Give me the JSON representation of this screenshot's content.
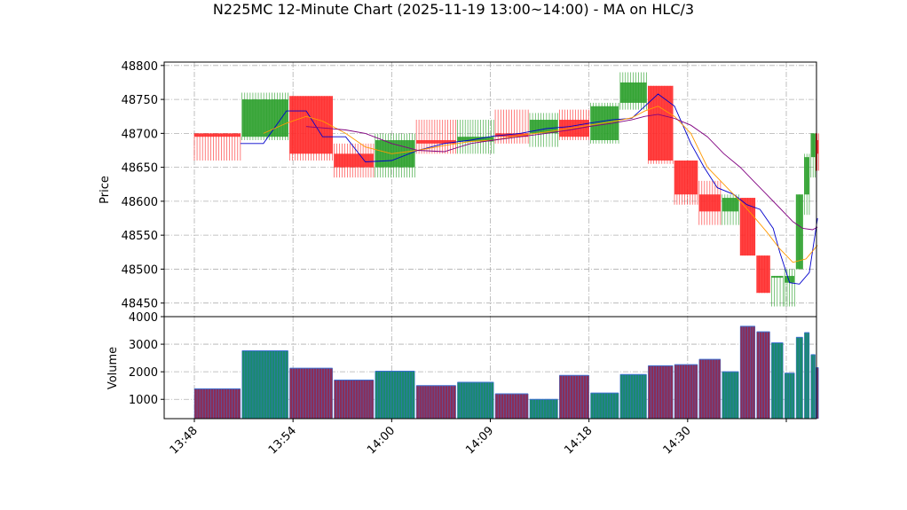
{
  "chart_data": {
    "type": "candlestick",
    "title": "N225MC 12-Minute Chart (2025-11-19 13:00~14:00) - MA on HLC/3",
    "ylabel_price": "Price",
    "ylabel_volume": "Volume",
    "price_ylim": [
      48430,
      48805
    ],
    "price_yticks": [
      48450,
      48500,
      48550,
      48600,
      48650,
      48700,
      48750,
      48800
    ],
    "volume_ylim": [
      300,
      4000
    ],
    "volume_yticks": [
      1000,
      2000,
      3000,
      4000
    ],
    "xticks": [
      {
        "label": "13:48",
        "i": 0
      },
      {
        "label": "13:54",
        "i": 3
      },
      {
        "label": "14:00",
        "i": 6
      },
      {
        "label": "14:09",
        "i": 9
      },
      {
        "label": "14:18",
        "i": 12
      },
      {
        "label": "14:30",
        "i": 15
      },
      {
        "label": "",
        "i": 18
      }
    ],
    "candles": [
      {
        "x0": 0.0,
        "x1": 1.4,
        "open": 48700,
        "high": 48700,
        "low": 48660,
        "close": 48695,
        "volume": 1380
      },
      {
        "x0": 1.45,
        "x1": 2.85,
        "open": 48695,
        "high": 48760,
        "low": 48690,
        "close": 48750,
        "volume": 2760
      },
      {
        "x0": 2.9,
        "x1": 4.2,
        "open": 48755,
        "high": 48755,
        "low": 48660,
        "close": 48670,
        "volume": 2130
      },
      {
        "x0": 4.25,
        "x1": 5.45,
        "open": 48670,
        "high": 48685,
        "low": 48635,
        "close": 48650,
        "volume": 1700
      },
      {
        "x0": 5.5,
        "x1": 6.7,
        "open": 48650,
        "high": 48700,
        "low": 48635,
        "close": 48690,
        "volume": 2020
      },
      {
        "x0": 6.75,
        "x1": 7.95,
        "open": 48690,
        "high": 48720,
        "low": 48670,
        "close": 48685,
        "volume": 1500
      },
      {
        "x0": 8.0,
        "x1": 9.1,
        "open": 48688,
        "high": 48720,
        "low": 48670,
        "close": 48695,
        "volume": 1620
      },
      {
        "x0": 9.15,
        "x1": 10.15,
        "open": 48700,
        "high": 48735,
        "low": 48685,
        "close": 48695,
        "volume": 1200
      },
      {
        "x0": 10.2,
        "x1": 11.05,
        "open": 48700,
        "high": 48730,
        "low": 48680,
        "close": 48720,
        "volume": 1000
      },
      {
        "x0": 11.1,
        "x1": 12.0,
        "open": 48720,
        "high": 48735,
        "low": 48690,
        "close": 48695,
        "volume": 1870
      },
      {
        "x0": 12.05,
        "x1": 12.9,
        "open": 48690,
        "high": 48745,
        "low": 48685,
        "close": 48740,
        "volume": 1230
      },
      {
        "x0": 12.95,
        "x1": 13.75,
        "open": 48745,
        "high": 48790,
        "low": 48735,
        "close": 48775,
        "volume": 1900
      },
      {
        "x0": 13.8,
        "x1": 14.55,
        "open": 48770,
        "high": 48770,
        "low": 48655,
        "close": 48660,
        "volume": 2220
      },
      {
        "x0": 14.6,
        "x1": 15.3,
        "open": 48660,
        "high": 48660,
        "low": 48595,
        "close": 48610,
        "volume": 2260
      },
      {
        "x0": 15.35,
        "x1": 16.0,
        "open": 48610,
        "high": 48630,
        "low": 48565,
        "close": 48585,
        "volume": 2450
      },
      {
        "x0": 16.05,
        "x1": 16.55,
        "open": 48585,
        "high": 48610,
        "low": 48565,
        "close": 48605,
        "volume": 2000
      },
      {
        "x0": 16.6,
        "x1": 17.05,
        "open": 48605,
        "high": 48605,
        "low": 48520,
        "close": 48520,
        "volume": 3650
      },
      {
        "x0": 17.1,
        "x1": 17.5,
        "open": 48520,
        "high": 48520,
        "low": 48465,
        "close": 48465,
        "volume": 3450
      },
      {
        "x0": 17.55,
        "x1": 17.9,
        "open": 48490,
        "high": 48490,
        "low": 48445,
        "close": 48490,
        "volume": 3050
      },
      {
        "x0": 17.95,
        "x1": 18.25,
        "open": 48480,
        "high": 48500,
        "low": 48445,
        "close": 48490,
        "volume": 1950
      },
      {
        "x0": 18.3,
        "x1": 18.5,
        "open": 48500,
        "high": 48610,
        "low": 48500,
        "close": 48610,
        "volume": 3250
      },
      {
        "x0": 18.55,
        "x1": 18.7,
        "open": 48610,
        "high": 48670,
        "low": 48580,
        "close": 48665,
        "volume": 3420
      },
      {
        "x0": 18.75,
        "x1": 18.88,
        "open": 48665,
        "high": 48700,
        "low": 48635,
        "close": 48700,
        "volume": 2620
      },
      {
        "x0": 18.9,
        "x1": 18.98,
        "open": 48690,
        "high": 48700,
        "low": 48645,
        "close": 48670,
        "volume": 2150
      }
    ],
    "series": [
      {
        "color": "#0000cc",
        "x": [
          1.4,
          2.1,
          2.8,
          3.4,
          3.9,
          4.6,
          5.2,
          6.0,
          6.8,
          7.6,
          8.4,
          9.1,
          9.9,
          10.7,
          11.4,
          12.0,
          12.7,
          13.3,
          13.7,
          14.1,
          14.6,
          15.1,
          15.5,
          15.9,
          16.4,
          16.8,
          17.2,
          17.6,
          17.8,
          18.1,
          18.4,
          18.7,
          18.95
        ],
        "y": [
          48685,
          48685,
          48733,
          48733,
          48695,
          48695,
          48658,
          48660,
          48675,
          48685,
          48690,
          48696,
          48700,
          48707,
          48710,
          48715,
          48720,
          48722,
          48740,
          48758,
          48740,
          48685,
          48650,
          48620,
          48610,
          48595,
          48588,
          48560,
          48525,
          48480,
          48478,
          48495,
          48575
        ]
      },
      {
        "color": "#ff9900",
        "x": [
          2.1,
          2.8,
          3.4,
          3.9,
          4.6,
          5.2,
          6.0,
          6.8,
          7.6,
          8.4,
          9.1,
          9.9,
          10.7,
          11.4,
          12.0,
          12.7,
          13.3,
          13.7,
          14.1,
          14.6,
          15.1,
          15.6,
          16.1,
          16.6,
          17.0,
          17.4,
          17.8,
          18.2,
          18.6,
          18.95
        ],
        "y": [
          48700,
          48715,
          48725,
          48718,
          48700,
          48680,
          48670,
          48675,
          48682,
          48688,
          48690,
          48697,
          48702,
          48707,
          48712,
          48717,
          48723,
          48733,
          48740,
          48725,
          48700,
          48650,
          48625,
          48600,
          48578,
          48555,
          48530,
          48510,
          48515,
          48535
        ]
      },
      {
        "color": "#800080",
        "x": [
          3.4,
          3.9,
          4.6,
          5.2,
          6.0,
          6.8,
          7.6,
          8.4,
          9.1,
          9.9,
          10.7,
          11.4,
          12.0,
          12.7,
          13.3,
          13.7,
          14.1,
          14.6,
          15.1,
          15.6,
          16.1,
          16.6,
          17.0,
          17.4,
          17.8,
          18.2,
          18.5,
          18.8,
          18.95
        ],
        "y": [
          48710,
          48708,
          48705,
          48700,
          48685,
          48675,
          48673,
          48685,
          48690,
          48695,
          48700,
          48705,
          48710,
          48715,
          48720,
          48725,
          48728,
          48722,
          48712,
          48695,
          48670,
          48650,
          48630,
          48610,
          48590,
          48570,
          48560,
          48558,
          48562
        ]
      }
    ]
  }
}
